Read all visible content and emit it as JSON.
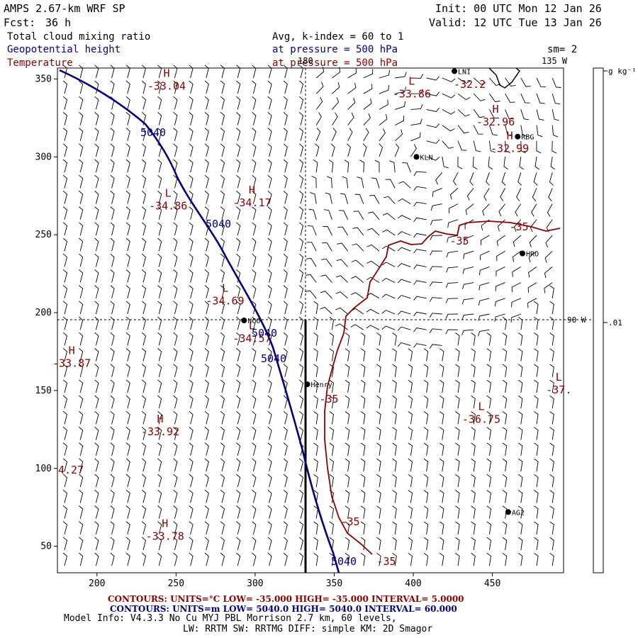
{
  "header": {
    "model_title": "AMPS 2.67-km WRF SP",
    "forecast_label": "Fcst:",
    "forecast_hours": "36 h",
    "init_text": "Init: 00 UTC Mon 12 Jan 26",
    "valid_text": "Valid: 12 UTC Tue 13 Jan 26",
    "field_cloud": "Total cloud mixing ratio",
    "field_height": "Geopotential height",
    "field_temp": "Temperature",
    "avg_text": "Avg, k-index =  60 to   1",
    "pressure_line1": "at pressure =  500 hPa",
    "pressure_line2": "at pressure =  500 hPa",
    "smoothing": "sm= 2"
  },
  "map": {
    "meridian_labels": {
      "top_180": "180",
      "top_135w": "135 W",
      "right_90w": "90 W"
    },
    "stations": [
      {
        "name": "NCO",
        "x": 293,
        "y": 195
      },
      {
        "name": "Henry",
        "x": 333,
        "y": 154
      },
      {
        "name": "KLN",
        "x": 402,
        "y": 300
      },
      {
        "name": "RBG",
        "x": 466,
        "y": 313
      },
      {
        "name": "HRO",
        "x": 469,
        "y": 238
      },
      {
        "name": "AG2",
        "x": 460,
        "y": 72
      },
      {
        "name": "LNI",
        "x": 426,
        "y": 355
      }
    ],
    "extrema": [
      {
        "kind": "H",
        "value": "-33.04",
        "x": 244,
        "y": 345
      },
      {
        "kind": "L",
        "value": "-33.86",
        "x": 399,
        "y": 340
      },
      {
        "kind": "H",
        "value": "-32.96",
        "x": 452,
        "y": 322
      },
      {
        "kind": "H",
        "value": "-32.99",
        "x": 461,
        "y": 305
      },
      {
        "kind": "L",
        "value": "-34.86",
        "x": 245,
        "y": 268
      },
      {
        "kind": "H",
        "value": "-34.17",
        "x": 298,
        "y": 270
      },
      {
        "kind": "L",
        "value": "-34.69",
        "x": 281,
        "y": 207
      },
      {
        "kind": "L",
        "value": "-34.57",
        "x": 298,
        "y": 183
      },
      {
        "kind": "H",
        "value": "-33.87",
        "x": 184,
        "y": 167
      },
      {
        "kind": "H",
        "value": "-33.92",
        "x": 240,
        "y": 123
      },
      {
        "kind": "H",
        "value": "-33.78",
        "x": 243,
        "y": 56
      },
      {
        "kind": "L",
        "value": "-36.75",
        "x": 443,
        "y": 131
      },
      {
        "kind": "L",
        "value": "-37.",
        "x": 492,
        "y": 150
      }
    ],
    "partial_label_left": "4.27",
    "partial_label_top": "-32.2",
    "height_contour_labels": [
      "5040",
      "5040",
      "5040",
      "5040",
      "5040"
    ],
    "temp_contour_labels": [
      "-35",
      "-35",
      "-35",
      "-35",
      "-35"
    ],
    "x_axis": {
      "ticks": [
        200,
        250,
        300,
        350,
        400,
        450
      ],
      "range": [
        175,
        495
      ]
    },
    "y_axis": {
      "ticks": [
        50,
        100,
        150,
        200,
        250,
        300,
        350
      ],
      "range": [
        33,
        357
      ]
    }
  },
  "colorbar": {
    "unit_label": "g kg⁻¹",
    "tick_value": ".01"
  },
  "footer": {
    "temp_contours": "CONTOURS:  UNITS=°C  LOW= -35.000      HIGH= -35.000      INTERVAL=   5.0000",
    "height_contours": "CONTOURS:  UNITS=m  LOW=  5040.0      HIGH=  5040.0      INTERVAL=   60.000",
    "model_info": "Model Info: V4.3.3    No Cu    MYJ PBL  Morrison          2.7 km,  60 levels,",
    "physics": "LW: RRTM SW: RRTMG   DIFF: simple KM: 2D Smagor"
  },
  "colors": {
    "height": "#000080",
    "temperature": "#8b0000",
    "frame": "#000000"
  }
}
